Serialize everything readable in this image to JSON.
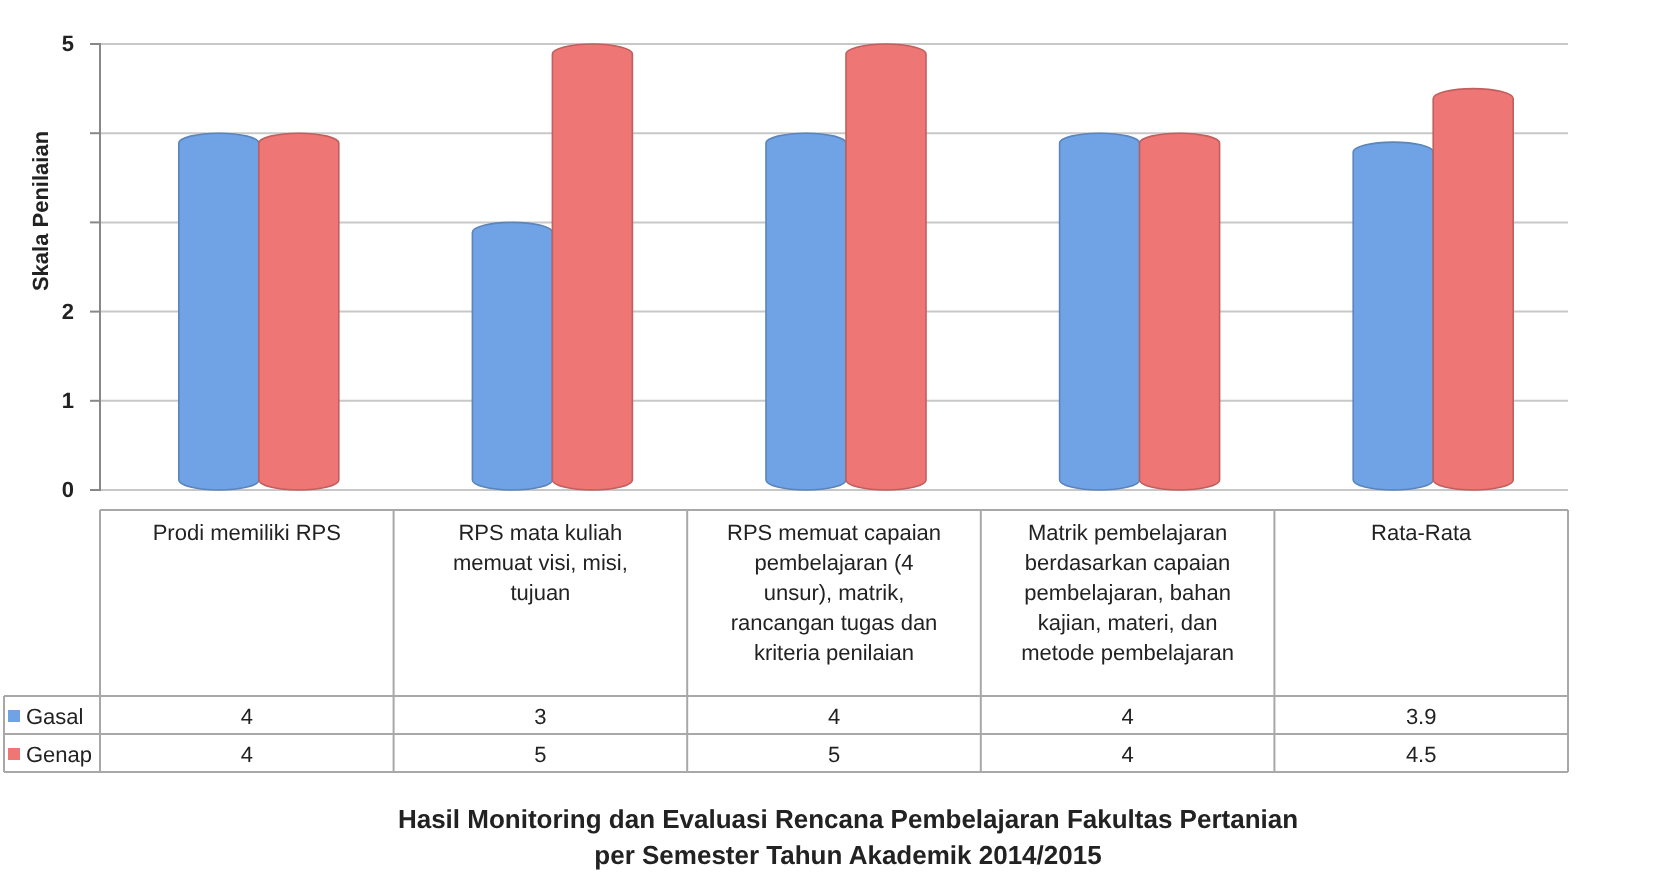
{
  "chart_data": {
    "type": "bar",
    "title": "Hasil Monitoring dan Evaluasi Rencana Pembelajaran Fakultas Pertanian\nper Semester Tahun Akademik 2014/2015",
    "ylabel": "Skala Penilaian",
    "categories": [
      "Prodi memiliki RPS",
      "RPS mata kuliah memuat visi, misi, tujuan",
      "RPS memuat capaian pembelajaran (4 unsur), matrik, rancangan tugas dan kriteria penilaian",
      "Matrik pembelajaran berdasarkan capaian pembelajaran, bahan kajian, materi, dan metode pembelajaran",
      "Rata-Rata"
    ],
    "series": [
      {
        "name": "Gasal",
        "color": "#6fa3e6",
        "values": [
          4,
          3,
          4,
          4,
          3.9
        ]
      },
      {
        "name": "Genap",
        "color": "#ee7674",
        "values": [
          4,
          5,
          5,
          4,
          4.5
        ]
      }
    ],
    "ylim": [
      0,
      5
    ],
    "yticks": [
      0,
      1,
      2,
      {
        "value": 3,
        "label": null
      },
      {
        "value": 4,
        "label": null
      },
      5
    ],
    "grid": "y",
    "legend": "bottom left",
    "data_labels": true
  }
}
